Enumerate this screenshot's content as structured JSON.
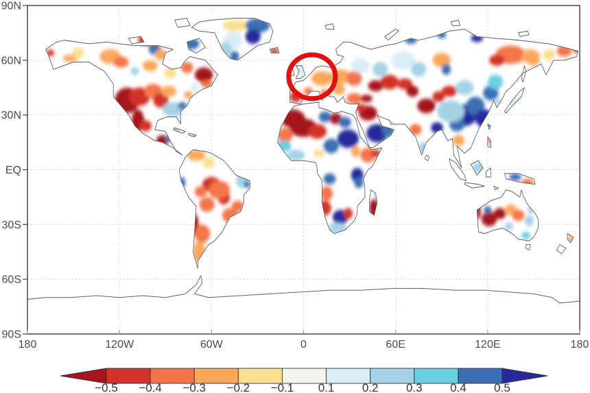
{
  "figure": {
    "background": "#ffffff",
    "frame_color": "#1a1a1a",
    "grid_color": "#c8c8c8",
    "coast_color": "#5f5f5f",
    "label_color": "#4a4a4a"
  },
  "chart_data": {
    "type": "heatmap",
    "title": "",
    "description": "Global equirectangular map of gridded anomaly/correlation values over land (white over ocean), with a red ellipse annotation highlighting Europe and a discrete diverging colorbar from -0.5 (dark red) to 0.5 (dark blue) with arrow extensions on both ends.",
    "projection": "equirectangular",
    "x_axis": {
      "range_deg": [
        -180,
        180
      ],
      "ticks": [
        {
          "value": -180,
          "label": "180"
        },
        {
          "value": -120,
          "label": "120W"
        },
        {
          "value": -60,
          "label": "60W"
        },
        {
          "value": 0,
          "label": "0"
        },
        {
          "value": 60,
          "label": "60E"
        },
        {
          "value": 120,
          "label": "120E"
        },
        {
          "value": 180,
          "label": "180"
        }
      ]
    },
    "y_axis": {
      "range_deg": [
        -90,
        90
      ],
      "ticks": [
        {
          "value": 90,
          "label": "90N"
        },
        {
          "value": 60,
          "label": "60N"
        },
        {
          "value": 30,
          "label": "30N"
        },
        {
          "value": 0,
          "label": "EQ"
        },
        {
          "value": -30,
          "label": "30S"
        },
        {
          "value": -60,
          "label": "60S"
        },
        {
          "value": -90,
          "label": "90S"
        }
      ]
    },
    "grid": {
      "lat_lines": [
        60,
        30,
        0,
        -30,
        -60
      ],
      "lon_lines": [
        -120,
        -60,
        0,
        60,
        120
      ],
      "style": "dotted"
    },
    "colorbar": {
      "extend_both_arrows": true,
      "boundaries": [
        -0.5,
        -0.4,
        -0.3,
        -0.2,
        -0.1,
        0.1,
        0.2,
        0.3,
        0.4,
        0.5
      ],
      "tick_labels": [
        "−0.5",
        "−0.4",
        "−0.3",
        "−0.2",
        "−0.1",
        "0.1",
        "0.2",
        "0.3",
        "0.4",
        "0.5"
      ],
      "colors": [
        "#a4151c",
        "#d23227",
        "#f3744a",
        "#f9a75b",
        "#fbdf90",
        "#f4f4ee",
        "#d9edf6",
        "#a5d2e6",
        "#69cfe1",
        "#3a70b3",
        "#282a9b"
      ],
      "outline_color": "#333333",
      "label_color": "#333333"
    },
    "annotation": {
      "type": "ellipse",
      "label": "europe-highlight",
      "center_lon": 5.5,
      "center_lat": 51.0,
      "rx_deg": 15.2,
      "ry_deg": 12.0,
      "stroke_color": "#e01010",
      "stroke_width_px": 7
    },
    "cells_format": "[lon_deg, lat_deg, rx_deg, ry_deg, value]",
    "cells": [
      [
        -165,
        64,
        2.5,
        1.8,
        -0.45
      ],
      [
        -152,
        61,
        5,
        2,
        -0.25
      ],
      [
        -147,
        64,
        4,
        3,
        -0.15
      ],
      [
        -126,
        62,
        7,
        4,
        -0.25
      ],
      [
        -119,
        59,
        5,
        3,
        -0.35
      ],
      [
        -102,
        71,
        6,
        3,
        -0.45
      ],
      [
        -86,
        70,
        4,
        3,
        -0.35
      ],
      [
        -97,
        66,
        4,
        3,
        0.45
      ],
      [
        -73,
        69,
        5,
        3,
        0.45
      ],
      [
        -93,
        63,
        4,
        3,
        -0.25
      ],
      [
        -65,
        52,
        6,
        4,
        -0.55
      ],
      [
        -76,
        56,
        4,
        3,
        -0.35
      ],
      [
        -100,
        57,
        5,
        3,
        -0.25
      ],
      [
        -110,
        54,
        3,
        2,
        0.25
      ],
      [
        -87,
        53,
        4,
        3,
        -0.15
      ],
      [
        -115,
        38,
        8,
        7,
        -0.55
      ],
      [
        -107,
        40,
        7,
        5,
        -0.45
      ],
      [
        -98,
        43,
        6,
        4,
        -0.35
      ],
      [
        -93,
        38,
        5,
        4,
        -0.45
      ],
      [
        -88,
        43,
        5,
        3,
        -0.25
      ],
      [
        -108,
        27,
        4,
        6,
        -0.55
      ],
      [
        -103,
        24,
        4,
        3,
        -0.45
      ],
      [
        -85,
        33,
        7,
        4,
        0.25
      ],
      [
        -79,
        35,
        3,
        2,
        0.45
      ],
      [
        -75,
        41,
        3,
        2,
        -0.25
      ],
      [
        -63,
        47,
        4,
        2,
        -0.35
      ],
      [
        -71,
        45,
        3,
        2,
        0.15
      ],
      [
        -92,
        16,
        4,
        3,
        -0.5
      ],
      [
        -88,
        17,
        2,
        2,
        0.45
      ],
      [
        -84,
        22,
        3,
        2,
        0.3
      ],
      [
        -70,
        20,
        3,
        1.5,
        -0.3
      ],
      [
        -44,
        79,
        9,
        3,
        -0.15
      ],
      [
        -30,
        79,
        8,
        4,
        0.5
      ],
      [
        -33,
        73,
        5,
        4,
        0.55
      ],
      [
        -46,
        71,
        6,
        5,
        0.2
      ],
      [
        -51,
        66,
        4,
        4,
        0.3
      ],
      [
        -45,
        62,
        3,
        3,
        0.45
      ],
      [
        -19,
        65,
        3,
        1.5,
        -0.45
      ],
      [
        -70,
        8,
        6,
        3,
        -0.25
      ],
      [
        -62,
        4,
        4,
        3,
        -0.15
      ],
      [
        -40,
        -6,
        4,
        4,
        0.3
      ],
      [
        -37,
        -8,
        2,
        2,
        0.5
      ],
      [
        -60,
        -8,
        6,
        4,
        -0.4
      ],
      [
        -67,
        -12,
        4,
        3,
        -0.35
      ],
      [
        -52,
        -15,
        4,
        4,
        -0.45
      ],
      [
        -55,
        -11,
        7,
        5,
        -0.3
      ],
      [
        -79,
        -7,
        2,
        3,
        0.5
      ],
      [
        -63,
        -19,
        5,
        4,
        -0.3
      ],
      [
        -71,
        -30,
        2.5,
        6,
        -0.5
      ],
      [
        -66,
        -35,
        5,
        5,
        -0.3
      ],
      [
        -68,
        -45,
        4,
        6,
        -0.25
      ],
      [
        -48,
        -25,
        5,
        4,
        -0.3
      ],
      [
        -43,
        -20,
        4,
        3,
        -0.35
      ],
      [
        15,
        63,
        8,
        4,
        0.2
      ],
      [
        -3,
        54,
        4,
        3,
        0.2
      ],
      [
        12,
        50,
        7,
        4,
        -0.2
      ],
      [
        24,
        51,
        7,
        4,
        -0.25
      ],
      [
        33,
        50,
        5,
        4,
        -0.3
      ],
      [
        -5,
        40,
        4,
        3,
        -0.45
      ],
      [
        3,
        43,
        3,
        2,
        -0.3
      ],
      [
        14,
        42,
        3,
        2,
        -0.35
      ],
      [
        23,
        44,
        4,
        3,
        -0.25
      ],
      [
        33,
        39,
        5,
        3,
        -0.35
      ],
      [
        41,
        39,
        4,
        2,
        -0.5
      ],
      [
        37,
        57,
        6,
        4,
        0.2
      ],
      [
        47,
        46,
        5,
        3,
        -0.55
      ],
      [
        50,
        55,
        5,
        4,
        0.25
      ],
      [
        -7,
        28,
        8,
        5,
        -0.55
      ],
      [
        0,
        23,
        9,
        5,
        -0.55
      ],
      [
        9,
        21,
        6,
        4,
        -0.45
      ],
      [
        -12,
        19,
        5,
        4,
        -0.35
      ],
      [
        14,
        29,
        4,
        3,
        0.5
      ],
      [
        21,
        28,
        4,
        3,
        -0.5
      ],
      [
        27,
        26,
        4,
        3,
        0.5
      ],
      [
        29,
        17,
        7,
        5,
        0.55
      ],
      [
        18,
        13,
        5,
        4,
        0.5
      ],
      [
        -13,
        13,
        5,
        3,
        0.35
      ],
      [
        -5,
        8,
        6,
        3,
        0.25
      ],
      [
        10,
        9,
        4,
        2,
        -0.15
      ],
      [
        34,
        10,
        3,
        3,
        -0.25
      ],
      [
        42,
        8,
        5,
        4,
        -0.35
      ],
      [
        47,
        9,
        3,
        2,
        -0.45
      ],
      [
        42,
        31,
        6,
        4,
        -0.55
      ],
      [
        37,
        34,
        4,
        2,
        -0.45
      ],
      [
        48,
        20,
        7,
        5,
        0.55
      ],
      [
        55,
        22,
        4,
        4,
        0.5
      ],
      [
        17,
        -5,
        4,
        3,
        0.5
      ],
      [
        35,
        -3,
        4,
        4,
        0.55
      ],
      [
        36,
        -7,
        3,
        3,
        0.5
      ],
      [
        15,
        -13,
        4,
        4,
        -0.3
      ],
      [
        14,
        -21,
        4,
        4,
        -0.45
      ],
      [
        24,
        -26,
        5,
        4,
        0.55
      ],
      [
        22,
        -32,
        6,
        3,
        0.25
      ],
      [
        29,
        -24,
        3,
        3,
        -0.45
      ],
      [
        46,
        -21,
        3,
        5,
        -0.55
      ],
      [
        48,
        -14,
        2,
        2,
        0.3
      ],
      [
        56,
        48,
        6,
        4,
        -0.45
      ],
      [
        66,
        47,
        5,
        3,
        -0.4
      ],
      [
        71,
        43,
        4,
        3,
        -0.5
      ],
      [
        80,
        35,
        6,
        4,
        -0.55
      ],
      [
        95,
        43,
        5,
        3,
        -0.4
      ],
      [
        88,
        40,
        4,
        3,
        -0.45
      ],
      [
        90,
        60,
        6,
        4,
        -0.25
      ],
      [
        135,
        63,
        10,
        5,
        -0.3
      ],
      [
        126,
        60,
        5,
        3,
        -0.45
      ],
      [
        148,
        62,
        6,
        4,
        -0.25
      ],
      [
        70,
        71,
        4,
        2,
        0.5
      ],
      [
        90,
        74,
        3,
        2,
        0.5
      ],
      [
        113,
        72,
        4,
        2,
        0.55
      ],
      [
        65,
        60,
        8,
        5,
        0.2
      ],
      [
        75,
        55,
        5,
        4,
        0.25
      ],
      [
        93,
        55,
        3,
        3,
        0.45
      ],
      [
        105,
        45,
        6,
        4,
        0.25
      ],
      [
        105,
        30,
        8,
        6,
        0.55
      ],
      [
        112,
        35,
        6,
        5,
        0.5
      ],
      [
        118,
        28,
        6,
        5,
        0.55
      ],
      [
        100,
        25,
        5,
        4,
        0.45
      ],
      [
        96,
        32,
        9,
        6,
        0.3
      ],
      [
        122,
        42,
        5,
        4,
        0.5
      ],
      [
        125,
        48,
        5,
        4,
        0.35
      ],
      [
        87,
        23,
        4,
        3,
        0.55
      ],
      [
        73,
        22,
        4,
        3,
        -0.3
      ],
      [
        78,
        12,
        3,
        3,
        0.25
      ],
      [
        101,
        16,
        4,
        3,
        -0.25
      ],
      [
        102,
        4,
        4,
        2,
        0.2
      ],
      [
        114,
        1,
        4,
        3,
        0.25
      ],
      [
        138,
        -4,
        4,
        2,
        0.45
      ],
      [
        146,
        -7,
        4,
        2,
        -0.3
      ],
      [
        138,
        37,
        4,
        3,
        0.2
      ],
      [
        127,
        37,
        2,
        2,
        0.3
      ],
      [
        150,
        60,
        4,
        3,
        -0.25
      ],
      [
        170,
        65,
        5,
        3,
        -0.35
      ],
      [
        178,
        66,
        2,
        2,
        -0.45
      ],
      [
        122,
        16,
        2,
        2,
        -0.3
      ],
      [
        160,
        63,
        4,
        3,
        -0.15
      ],
      [
        114,
        -23,
        1.5,
        4,
        -0.55
      ],
      [
        121,
        -27,
        5,
        4,
        -0.55
      ],
      [
        128,
        -24,
        4,
        3,
        -0.5
      ],
      [
        120,
        -22,
        2.5,
        2,
        0.5
      ],
      [
        135,
        -22,
        4,
        3,
        -0.25
      ],
      [
        140,
        -25,
        4,
        3,
        -0.3
      ],
      [
        147,
        -28,
        3,
        3,
        0.25
      ],
      [
        134,
        -31,
        3,
        2,
        0.25
      ],
      [
        145,
        -36,
        3,
        2,
        0.35
      ],
      [
        148,
        -22,
        2,
        2,
        0.3
      ],
      [
        174,
        -38,
        2,
        2,
        -0.25
      ]
    ]
  }
}
